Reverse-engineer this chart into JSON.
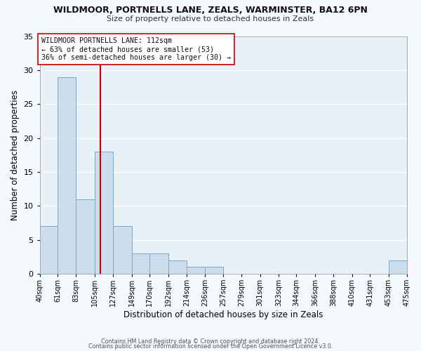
{
  "title": "WILDMOOR, PORTNELLS LANE, ZEALS, WARMINSTER, BA12 6PN",
  "subtitle": "Size of property relative to detached houses in Zeals",
  "xlabel": "Distribution of detached houses by size in Zeals",
  "ylabel": "Number of detached properties",
  "bar_color": "#ccdded",
  "bar_edgecolor": "#7aaac8",
  "background_color": "#ddeeff",
  "plot_bg_color": "#e8f0f8",
  "grid_color": "#ffffff",
  "bins": [
    40,
    61,
    83,
    105,
    127,
    149,
    170,
    192,
    214,
    236,
    257,
    279,
    301,
    323,
    344,
    366,
    388,
    410,
    431,
    453,
    475
  ],
  "counts": [
    7,
    29,
    11,
    18,
    7,
    3,
    3,
    2,
    1,
    1,
    0,
    0,
    0,
    0,
    0,
    0,
    0,
    0,
    0,
    2
  ],
  "tick_labels": [
    "40sqm",
    "61sqm",
    "83sqm",
    "105sqm",
    "127sqm",
    "149sqm",
    "170sqm",
    "192sqm",
    "214sqm",
    "236sqm",
    "257sqm",
    "279sqm",
    "301sqm",
    "323sqm",
    "344sqm",
    "366sqm",
    "388sqm",
    "410sqm",
    "431sqm",
    "453sqm",
    "475sqm"
  ],
  "ylim": [
    0,
    35
  ],
  "yticks": [
    0,
    5,
    10,
    15,
    20,
    25,
    30,
    35
  ],
  "vline_x": 112,
  "vline_color": "#cc0000",
  "annotation_box_color": "#ffffff",
  "annotation_border_color": "#cc0000",
  "annotation_line1": "WILDMOOR PORTNELLS LANE: 112sqm",
  "annotation_line2": "← 63% of detached houses are smaller (53)",
  "annotation_line3": "36% of semi-detached houses are larger (30) →",
  "footer1": "Contains HM Land Registry data © Crown copyright and database right 2024.",
  "footer2": "Contains public sector information licensed under the Open Government Licence v3.0."
}
